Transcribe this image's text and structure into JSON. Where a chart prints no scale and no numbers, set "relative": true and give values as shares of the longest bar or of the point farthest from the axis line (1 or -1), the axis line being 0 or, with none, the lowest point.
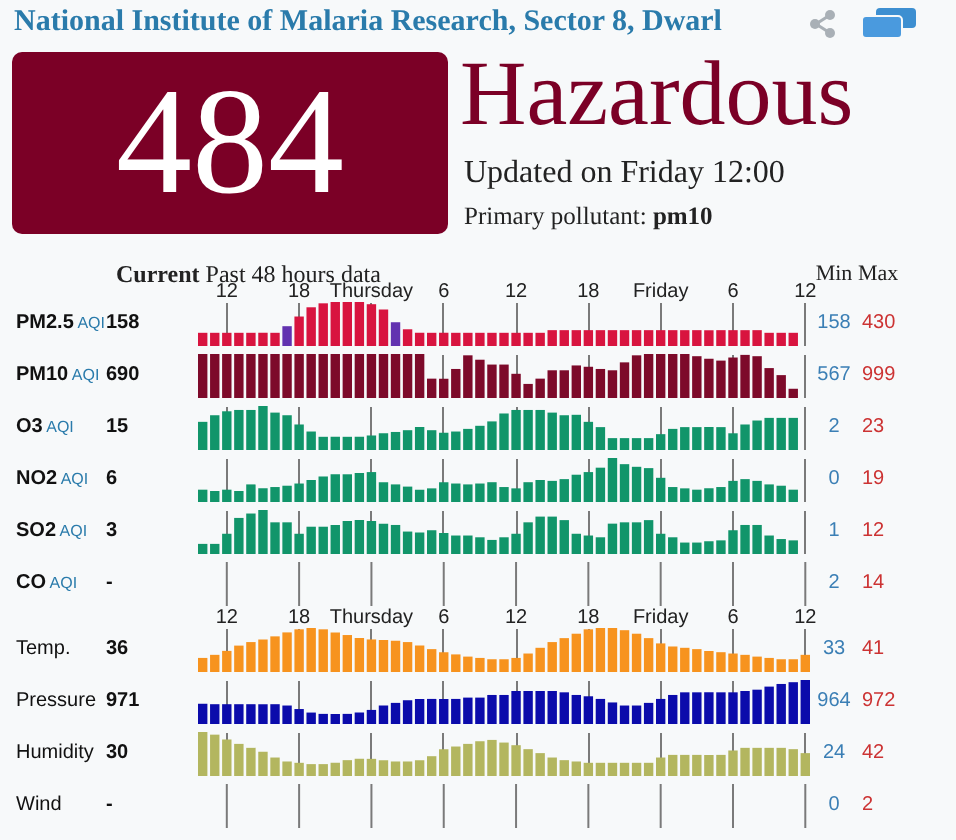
{
  "chart_data": [
    {
      "type": "other",
      "title": "National Institute of Malaria Research, Sector 8, Dwarl",
      "color": "#7b0026",
      "annotations": [
        "484",
        "Hazardous",
        "Updated on Friday 12:00",
        "Primary pollutant: pm10",
        "Current",
        "Past 48 hours data",
        "Min",
        "Max"
      ]
    },
    {
      "type": "bar",
      "relative": true,
      "ylabel": "PM2.5 AQI",
      "tick_labels": "x",
      "grid": "x",
      "categories": [
        null,
        null,
        "12",
        null,
        null,
        null,
        null,
        null,
        "18",
        null,
        null,
        null,
        null,
        null,
        "Thursday",
        null,
        null,
        null,
        null,
        null,
        "6",
        null,
        null,
        null,
        null,
        null,
        "12",
        null,
        null,
        null,
        null,
        null,
        "18",
        null,
        null,
        null,
        null,
        null,
        "Friday",
        null,
        null,
        null,
        null,
        null,
        "6",
        null,
        null,
        null,
        null,
        null,
        "12"
      ],
      "values": [
        0.3,
        0.3,
        0.3,
        0.3,
        0.3,
        0.3,
        0.3,
        0.45,
        0.67,
        0.88,
        0.97,
        1,
        1,
        1,
        0.95,
        0.83,
        0.54,
        0.38,
        0.3,
        0.3,
        0.3,
        0.3,
        0.3,
        0.3,
        0.3,
        0.3,
        0.3,
        0.3,
        0.3,
        0.36,
        0.36,
        0.36,
        0.36,
        0.36,
        0.36,
        0.36,
        0.36,
        0.36,
        0.36,
        0.36,
        0.36,
        0.36,
        0.36,
        0.36,
        0.36,
        0.36,
        0.36,
        0.3,
        0.3,
        0.3,
        null
      ],
      "colors": [
        "#d8143f",
        "#d8143f",
        "#d8143f",
        "#d8143f",
        "#d8143f",
        "#d8143f",
        "#d8143f",
        "#6232b0",
        "#d8143f",
        "#d8143f",
        "#d8143f",
        "#d8143f",
        "#d8143f",
        "#d8143f",
        "#d8143f",
        "#d8143f",
        "#6232b0",
        "#d8143f",
        "#d8143f",
        "#d8143f",
        "#d8143f",
        "#d8143f",
        "#d8143f",
        "#d8143f",
        "#d8143f",
        "#d8143f",
        "#d8143f",
        "#d8143f",
        "#d8143f",
        "#d8143f",
        "#d8143f",
        "#d8143f",
        "#d8143f",
        "#d8143f",
        "#d8143f",
        "#d8143f",
        "#d8143f",
        "#d8143f",
        "#d8143f",
        "#d8143f",
        "#d8143f",
        "#d8143f",
        "#d8143f",
        "#d8143f",
        "#d8143f",
        "#d8143f",
        "#d8143f",
        "#d8143f",
        "#d8143f",
        "#d8143f",
        null
      ],
      "annotations": [
        "158",
        "158",
        "430"
      ]
    },
    {
      "type": "bar",
      "relative": true,
      "ylabel": "PM10 AQI",
      "tick_labels": false,
      "grid": "x",
      "categories": [
        null,
        null,
        null,
        null,
        null,
        null,
        null,
        null,
        null,
        null,
        null,
        null,
        null,
        null,
        null,
        null,
        null,
        null,
        null,
        null,
        null,
        null,
        null,
        null,
        null,
        null,
        null,
        null,
        null,
        null,
        null,
        null,
        null,
        null,
        null,
        null,
        null,
        null,
        null,
        null,
        null,
        null,
        null,
        null,
        null,
        null,
        null,
        null,
        null,
        null,
        null
      ],
      "values": [
        1,
        1,
        1,
        1,
        1,
        1,
        1,
        1,
        1,
        1,
        1,
        1,
        1,
        1,
        1,
        1,
        1,
        1,
        1,
        0.44,
        0.44,
        0.66,
        0.97,
        0.87,
        0.76,
        0.76,
        0.55,
        0.32,
        0.44,
        0.63,
        0.63,
        0.74,
        0.71,
        0.66,
        0.63,
        0.81,
        0.97,
        1,
        1,
        1,
        1,
        0.95,
        0.89,
        0.85,
        0.92,
        0.98,
        0.95,
        0.68,
        0.52,
        0.21,
        null
      ],
      "color": "#7d0a2a",
      "annotations": [
        "690",
        "567",
        "999"
      ]
    },
    {
      "type": "bar",
      "relative": true,
      "ylabel": "O3 AQI",
      "tick_labels": false,
      "grid": "x",
      "categories": [
        null,
        null,
        null,
        null,
        null,
        null,
        null,
        null,
        null,
        null,
        null,
        null,
        null,
        null,
        null,
        null,
        null,
        null,
        null,
        null,
        null,
        null,
        null,
        null,
        null,
        null,
        null,
        null,
        null,
        null,
        null,
        null,
        null,
        null,
        null,
        null,
        null,
        null,
        null,
        null,
        null,
        null,
        null,
        null,
        null,
        null,
        null,
        null,
        null,
        null,
        null
      ],
      "values": [
        0.64,
        0.79,
        0.88,
        0.91,
        0.91,
        1,
        0.85,
        0.79,
        0.58,
        0.42,
        0.3,
        0.3,
        0.3,
        0.3,
        0.33,
        0.38,
        0.41,
        0.45,
        0.52,
        0.45,
        0.39,
        0.42,
        0.48,
        0.55,
        0.65,
        0.83,
        0.91,
        0.91,
        0.91,
        0.85,
        0.79,
        0.8,
        0.64,
        0.52,
        0.27,
        0.27,
        0.27,
        0.27,
        0.36,
        0.48,
        0.52,
        0.52,
        0.52,
        0.52,
        0.38,
        0.58,
        0.67,
        0.73,
        0.73,
        0.73,
        null
      ],
      "color": "#11956a",
      "annotations": [
        "15",
        "2",
        "23"
      ]
    },
    {
      "type": "bar",
      "relative": true,
      "ylabel": "NO2 AQI",
      "tick_labels": false,
      "grid": "x",
      "categories": [
        null,
        null,
        null,
        null,
        null,
        null,
        null,
        null,
        null,
        null,
        null,
        null,
        null,
        null,
        null,
        null,
        null,
        null,
        null,
        null,
        null,
        null,
        null,
        null,
        null,
        null,
        null,
        null,
        null,
        null,
        null,
        null,
        null,
        null,
        null,
        null,
        null,
        null,
        null,
        null,
        null,
        null,
        null,
        null,
        null,
        null,
        null,
        null,
        null,
        null,
        null
      ],
      "values": [
        0.28,
        0.25,
        0.28,
        0.25,
        0.4,
        0.31,
        0.34,
        0.37,
        0.42,
        0.5,
        0.58,
        0.63,
        0.63,
        0.66,
        0.68,
        0.45,
        0.4,
        0.35,
        0.28,
        0.31,
        0.45,
        0.42,
        0.4,
        0.42,
        0.45,
        0.34,
        0.31,
        0.45,
        0.5,
        0.48,
        0.52,
        0.62,
        0.68,
        0.78,
        1,
        0.86,
        0.8,
        0.77,
        0.55,
        0.34,
        0.31,
        0.28,
        0.31,
        0.34,
        0.48,
        0.52,
        0.48,
        0.4,
        0.37,
        0.28,
        null
      ],
      "color": "#11956a",
      "annotations": [
        "6",
        "0",
        "19"
      ]
    },
    {
      "type": "bar",
      "relative": true,
      "ylabel": "SO2 AQI",
      "tick_labels": false,
      "grid": "x",
      "categories": [
        null,
        null,
        null,
        null,
        null,
        null,
        null,
        null,
        null,
        null,
        null,
        null,
        null,
        null,
        null,
        null,
        null,
        null,
        null,
        null,
        null,
        null,
        null,
        null,
        null,
        null,
        null,
        null,
        null,
        null,
        null,
        null,
        null,
        null,
        null,
        null,
        null,
        null,
        null,
        null,
        null,
        null,
        null,
        null,
        null,
        null,
        null,
        null,
        null,
        null,
        null
      ],
      "values": [
        0.23,
        0.23,
        0.46,
        0.82,
        0.92,
        1,
        0.72,
        0.72,
        0.46,
        0.62,
        0.62,
        0.66,
        0.75,
        0.77,
        0.75,
        0.69,
        0.66,
        0.51,
        0.49,
        0.54,
        0.48,
        0.42,
        0.42,
        0.38,
        0.32,
        0.38,
        0.46,
        0.72,
        0.85,
        0.85,
        0.77,
        0.46,
        0.42,
        0.38,
        0.69,
        0.72,
        0.72,
        0.77,
        0.46,
        0.38,
        0.26,
        0.26,
        0.29,
        0.31,
        0.54,
        0.66,
        0.66,
        0.42,
        0.34,
        0.31,
        null
      ],
      "color": "#11956a",
      "annotations": [
        "3",
        "1",
        "12"
      ]
    },
    {
      "type": "other",
      "ylabel": "CO AQI",
      "annotations": [
        "-",
        "2",
        "14"
      ]
    },
    {
      "type": "bar",
      "relative": true,
      "ylabel": "Temp.",
      "tick_labels": "x",
      "grid": "x",
      "categories": [
        null,
        null,
        "12",
        null,
        null,
        null,
        null,
        null,
        "18",
        null,
        null,
        null,
        null,
        null,
        "Thursday",
        null,
        null,
        null,
        null,
        null,
        "6",
        null,
        null,
        null,
        null,
        null,
        "12",
        null,
        null,
        null,
        null,
        null,
        "18",
        null,
        null,
        null,
        null,
        null,
        "Friday",
        null,
        null,
        null,
        null,
        null,
        "6",
        null,
        null,
        null,
        null,
        null,
        "12"
      ],
      "values": [
        0.32,
        0.39,
        0.48,
        0.6,
        0.68,
        0.74,
        0.81,
        0.9,
        0.97,
        1,
        0.97,
        0.9,
        0.84,
        0.77,
        0.74,
        0.73,
        0.71,
        0.68,
        0.6,
        0.52,
        0.45,
        0.4,
        0.35,
        0.32,
        0.29,
        0.29,
        0.32,
        0.42,
        0.55,
        0.68,
        0.77,
        0.87,
        0.97,
        1,
        1,
        0.95,
        0.87,
        0.77,
        0.65,
        0.58,
        0.55,
        0.52,
        0.48,
        0.45,
        0.42,
        0.39,
        0.35,
        0.32,
        0.29,
        0.29,
        0.39
      ],
      "color": "#f7931e",
      "annotations": [
        "36",
        "33",
        "41"
      ]
    },
    {
      "type": "bar",
      "relative": true,
      "ylabel": "Pressure",
      "tick_labels": false,
      "grid": "x",
      "categories": [
        null,
        null,
        null,
        null,
        null,
        null,
        null,
        null,
        null,
        null,
        null,
        null,
        null,
        null,
        null,
        null,
        null,
        null,
        null,
        null,
        null,
        null,
        null,
        null,
        null,
        null,
        null,
        null,
        null,
        null,
        null,
        null,
        null,
        null,
        null,
        null,
        null,
        null,
        null,
        null,
        null,
        null,
        null,
        null,
        null,
        null,
        null,
        null,
        null,
        null,
        null
      ],
      "values": [
        0.46,
        0.45,
        0.45,
        0.45,
        0.45,
        0.45,
        0.45,
        0.42,
        0.34,
        0.26,
        0.23,
        0.23,
        0.23,
        0.26,
        0.32,
        0.42,
        0.48,
        0.54,
        0.57,
        0.57,
        0.57,
        0.57,
        0.6,
        0.6,
        0.66,
        0.66,
        0.75,
        0.75,
        0.75,
        0.75,
        0.72,
        0.66,
        0.63,
        0.57,
        0.49,
        0.42,
        0.42,
        0.48,
        0.57,
        0.66,
        0.72,
        0.72,
        0.72,
        0.72,
        0.72,
        0.75,
        0.78,
        0.85,
        0.91,
        0.95,
        1
      ],
      "color": "#0b0bab",
      "annotations": [
        "971",
        "964",
        "972"
      ]
    },
    {
      "type": "bar",
      "relative": true,
      "ylabel": "Humidity",
      "tick_labels": false,
      "grid": "x",
      "categories": [
        null,
        null,
        null,
        null,
        null,
        null,
        null,
        null,
        null,
        null,
        null,
        null,
        null,
        null,
        null,
        null,
        null,
        null,
        null,
        null,
        null,
        null,
        null,
        null,
        null,
        null,
        null,
        null,
        null,
        null,
        null,
        null,
        null,
        null,
        null,
        null,
        null,
        null,
        null,
        null,
        null,
        null,
        null,
        null,
        null,
        null,
        null,
        null,
        null,
        null,
        null
      ],
      "values": [
        1,
        0.94,
        0.83,
        0.73,
        0.64,
        0.55,
        0.42,
        0.33,
        0.3,
        0.27,
        0.27,
        0.3,
        0.36,
        0.39,
        0.39,
        0.36,
        0.33,
        0.33,
        0.36,
        0.45,
        0.61,
        0.67,
        0.73,
        0.79,
        0.82,
        0.76,
        0.7,
        0.61,
        0.52,
        0.42,
        0.36,
        0.33,
        0.3,
        0.3,
        0.3,
        0.3,
        0.3,
        0.3,
        0.42,
        0.48,
        0.48,
        0.48,
        0.48,
        0.48,
        0.58,
        0.64,
        0.64,
        0.64,
        0.64,
        0.61,
        0.52
      ],
      "color": "#b3b65f",
      "annotations": [
        "30",
        "24",
        "42"
      ]
    },
    {
      "type": "other",
      "ylabel": "Wind",
      "annotations": [
        "-",
        "0",
        "2"
      ]
    }
  ]
}
